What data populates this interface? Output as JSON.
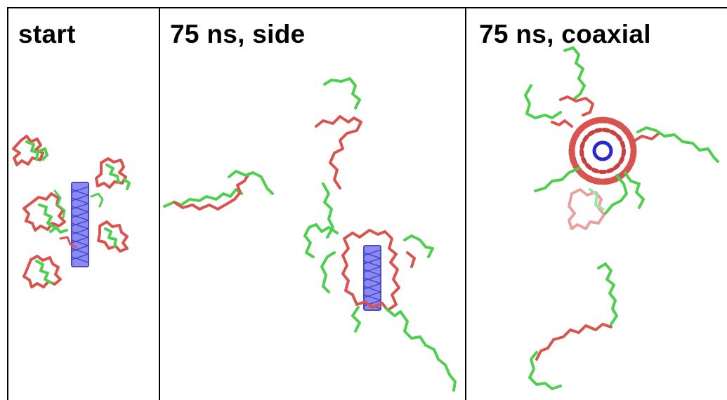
{
  "panels": [
    {
      "title": "start"
    },
    {
      "title": "75 ns, side"
    },
    {
      "title": "75 ns, coaxial"
    }
  ],
  "colors": {
    "peptide_hydrophobic": "#d9534f",
    "peptide_polar": "#4fcf4f",
    "nanotube": "#5a5ae0",
    "border": "#000000"
  }
}
